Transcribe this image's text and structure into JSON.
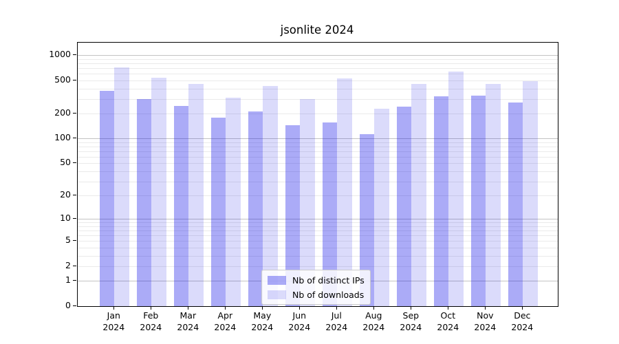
{
  "title": "jsonlite 2024",
  "chart_data": {
    "type": "bar",
    "title": "jsonlite 2024",
    "yscale": "log1p (symlog-like, 0 at baseline)",
    "ylim": [
      0,
      1420
    ],
    "grid": "horizontal major and minor gridlines",
    "legend_position": "inside bottom-center",
    "yticks": [
      1000,
      500,
      200,
      100,
      50,
      20,
      10,
      5,
      2,
      1,
      0
    ],
    "categories": [
      {
        "month": "Jan",
        "year": "2024"
      },
      {
        "month": "Feb",
        "year": "2024"
      },
      {
        "month": "Mar",
        "year": "2024"
      },
      {
        "month": "Apr",
        "year": "2024"
      },
      {
        "month": "May",
        "year": "2024"
      },
      {
        "month": "Jun",
        "year": "2024"
      },
      {
        "month": "Jul",
        "year": "2024"
      },
      {
        "month": "Aug",
        "year": "2024"
      },
      {
        "month": "Sep",
        "year": "2024"
      },
      {
        "month": "Oct",
        "year": "2024"
      },
      {
        "month": "Nov",
        "year": "2024"
      },
      {
        "month": "Dec",
        "year": "2024"
      }
    ],
    "series": [
      {
        "name": "Nb of distinct IPs",
        "color": "rgba(0,0,230,0.33)",
        "values": [
          375,
          298,
          246,
          180,
          214,
          145,
          155,
          112,
          243,
          321,
          330,
          274
        ]
      },
      {
        "name": "Nb of downloads",
        "color": "rgba(0,0,230,0.14)",
        "values": [
          715,
          542,
          457,
          311,
          432,
          298,
          526,
          231,
          454,
          644,
          457,
          485
        ]
      }
    ]
  },
  "colors": {
    "grid_major": "#c3c3c3",
    "grid_minor": "#eaeaea",
    "axis": "#000000",
    "background": "#ffffff"
  }
}
